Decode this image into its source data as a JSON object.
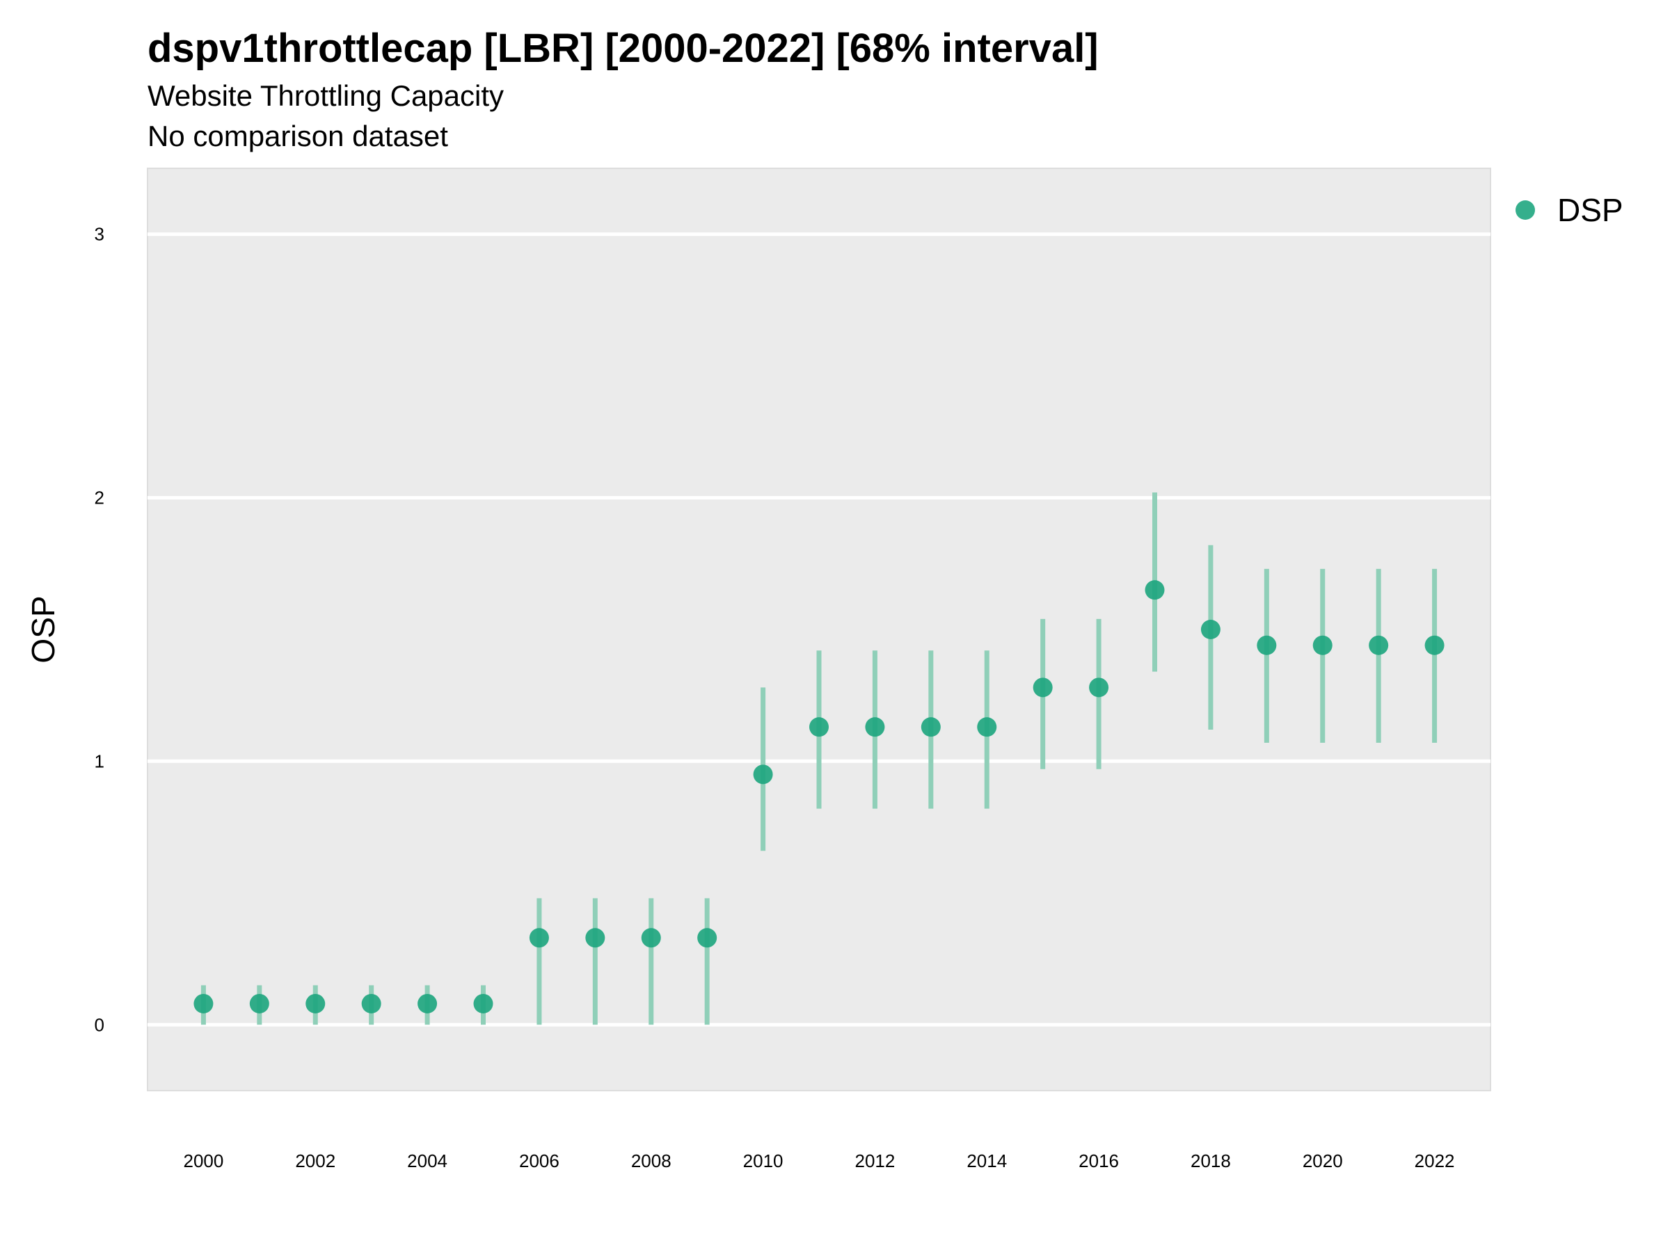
{
  "chart_data": {
    "type": "scatter",
    "title": "dspv1throttlecap [LBR] [2000-2022] [68% interval]",
    "subtitle": "Website Throttling Capacity",
    "note": "No comparison dataset",
    "xlabel": "",
    "ylabel": "OSP",
    "xlim": [
      1999,
      2023
    ],
    "ylim": [
      -0.25,
      3.25
    ],
    "x_ticks": [
      2000,
      2002,
      2004,
      2006,
      2008,
      2010,
      2012,
      2014,
      2016,
      2018,
      2020,
      2022
    ],
    "y_ticks": [
      0,
      1,
      2,
      3
    ],
    "grid": true,
    "legend_position": "right",
    "colors": {
      "point": "#1fa67f",
      "interval": "#8fcfb8",
      "panel": "#ebebeb",
      "grid": "#ffffff"
    },
    "series": [
      {
        "name": "DSP",
        "x": [
          2000,
          2001,
          2002,
          2003,
          2004,
          2005,
          2006,
          2007,
          2008,
          2009,
          2010,
          2011,
          2012,
          2013,
          2014,
          2015,
          2016,
          2017,
          2018,
          2019,
          2020,
          2021,
          2022
        ],
        "y": [
          0.08,
          0.08,
          0.08,
          0.08,
          0.08,
          0.08,
          0.33,
          0.33,
          0.33,
          0.33,
          0.95,
          1.13,
          1.13,
          1.13,
          1.13,
          1.28,
          1.28,
          1.65,
          1.5,
          1.44,
          1.44,
          1.44,
          1.44
        ],
        "lower": [
          0.0,
          0.0,
          0.0,
          0.0,
          0.0,
          0.0,
          0.0,
          0.0,
          0.0,
          0.0,
          0.66,
          0.82,
          0.82,
          0.82,
          0.82,
          0.97,
          0.97,
          1.34,
          1.12,
          1.07,
          1.07,
          1.07,
          1.07
        ],
        "upper": [
          0.15,
          0.15,
          0.15,
          0.15,
          0.15,
          0.15,
          0.48,
          0.48,
          0.48,
          0.48,
          1.28,
          1.42,
          1.42,
          1.42,
          1.42,
          1.54,
          1.54,
          2.02,
          1.82,
          1.73,
          1.73,
          1.73,
          1.73
        ]
      }
    ]
  }
}
